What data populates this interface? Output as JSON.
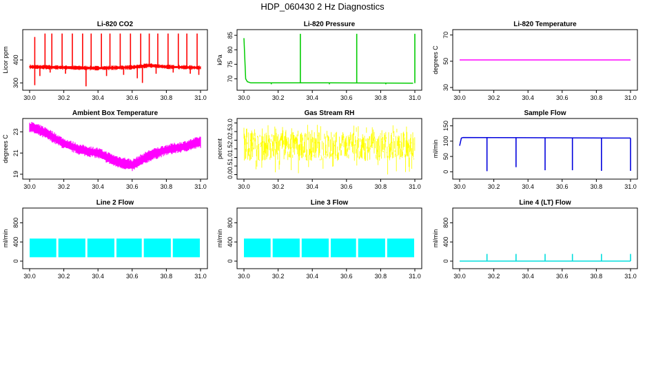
{
  "page": {
    "title": "HDP_060430  2 Hz Diagnostics"
  },
  "chart_data": [
    {
      "type": "line",
      "title": "Li-820 CO2",
      "xlabel": "",
      "ylabel": "Licor ppm",
      "color": "#ff0000",
      "xlim": [
        30.0,
        31.0
      ],
      "ylim": [
        280,
        520
      ],
      "xticks": [
        "30.0",
        "30.2",
        "30.4",
        "30.6",
        "30.8",
        "31.0"
      ],
      "yticks": [
        300,
        400
      ],
      "style": "band",
      "series": [
        {
          "x": [
            30.0,
            30.2,
            30.4,
            30.6,
            30.7,
            30.8,
            31.0
          ],
          "y": [
            370,
            367,
            364,
            368,
            376,
            370,
            366
          ]
        }
      ],
      "spikes_up": {
        "x": [
          30.03,
          30.09,
          30.13,
          30.19,
          30.25,
          30.31,
          30.36,
          30.42,
          30.47,
          30.53,
          30.59,
          30.65,
          30.7,
          30.75,
          30.81,
          30.87,
          30.92,
          30.98
        ],
        "y": [
          500,
          515,
          515,
          515,
          515,
          515,
          515,
          515,
          515,
          515,
          515,
          515,
          515,
          515,
          515,
          515,
          515,
          515
        ]
      },
      "spikes_down": {
        "x": [
          30.03,
          30.06,
          30.12,
          30.21,
          30.33,
          30.45,
          30.55,
          30.63,
          30.66,
          30.74,
          30.84,
          30.94,
          30.99
        ],
        "y": [
          290,
          330,
          345,
          340,
          285,
          330,
          335,
          320,
          300,
          340,
          345,
          340,
          335
        ]
      }
    },
    {
      "type": "line",
      "title": "Li-820 Pressure",
      "xlabel": "",
      "ylabel": "kPa",
      "color": "#00cc00",
      "xlim": [
        30.0,
        31.0
      ],
      "ylim": [
        67,
        86
      ],
      "xticks": [
        "30.0",
        "30.2",
        "30.4",
        "30.6",
        "30.8",
        "31.0"
      ],
      "yticks": [
        70,
        75,
        80,
        85
      ],
      "style": "line",
      "series": [
        {
          "x": [
            30.0,
            30.01,
            30.02,
            30.04,
            30.5,
            30.99
          ],
          "y": [
            84,
            70,
            69,
            68.6,
            68.6,
            68.5
          ]
        }
      ],
      "spikes_up": {
        "x": [
          30.33,
          30.66,
          31.0
        ],
        "y": [
          85.5,
          85.5,
          85.5
        ]
      },
      "spikes_down": {
        "x": [
          30.16,
          30.5,
          30.83
        ],
        "y": [
          68.1,
          68.1,
          68.1
        ]
      }
    },
    {
      "type": "line",
      "title": "Li-820 Temperature",
      "xlabel": "",
      "ylabel": "degrees C",
      "color": "#ff00ff",
      "xlim": [
        30.0,
        31.0
      ],
      "ylim": [
        30,
        72
      ],
      "xticks": [
        "30.0",
        "30.2",
        "30.4",
        "30.6",
        "30.8",
        "31.0"
      ],
      "yticks": [
        30,
        50,
        70
      ],
      "style": "line",
      "series": [
        {
          "x": [
            30.0,
            31.0
          ],
          "y": [
            51,
            51
          ]
        }
      ]
    },
    {
      "type": "area",
      "title": "Ambient Box Temperature",
      "xlabel": "",
      "ylabel": "degrees C",
      "color": "#ff00ff",
      "xlim": [
        30.0,
        31.0
      ],
      "ylim": [
        18.8,
        24.0
      ],
      "xticks": [
        "30.0",
        "30.2",
        "30.4",
        "30.6",
        "30.8",
        "31.0"
      ],
      "yticks": [
        19,
        21,
        23
      ],
      "style": "band",
      "series": [
        {
          "x": [
            30.0,
            30.1,
            30.2,
            30.3,
            30.4,
            30.5,
            30.6,
            30.7,
            30.8,
            30.9,
            31.0
          ],
          "upper": [
            23.9,
            23.3,
            22.3,
            21.7,
            21.4,
            20.7,
            20.3,
            21.2,
            21.7,
            22.0,
            22.5
          ],
          "lower": [
            23.1,
            22.4,
            21.5,
            20.9,
            20.6,
            19.8,
            19.4,
            20.3,
            20.9,
            21.2,
            21.6
          ]
        }
      ]
    },
    {
      "type": "line",
      "title": "Gas Stream RH",
      "xlabel": "",
      "ylabel": "percent",
      "color": "#ffff00",
      "xlim": [
        30.0,
        31.0
      ],
      "ylim": [
        -0.1,
        3.1
      ],
      "xticks": [
        "30.0",
        "30.2",
        "30.4",
        "30.6",
        "30.8",
        "31.0"
      ],
      "yticks": [
        "0.0",
        "0.5",
        "1.0",
        "1.5",
        "2.0",
        "2.5",
        "3.0"
      ],
      "style": "noise",
      "series": [
        {
          "x": [
            30.0,
            31.0
          ],
          "upper": [
            2.5,
            2.5
          ],
          "lower": [
            0.8,
            0.8
          ],
          "max": [
            2.9,
            2.9
          ],
          "min": [
            0.0,
            0.0
          ]
        }
      ]
    },
    {
      "type": "line",
      "title": "Sample Flow",
      "xlabel": "",
      "ylabel": "ml/min",
      "color": "#0000dd",
      "xlim": [
        30.0,
        31.0
      ],
      "ylim": [
        -15,
        165
      ],
      "xticks": [
        "30.0",
        "30.2",
        "30.4",
        "30.6",
        "30.8",
        "31.0"
      ],
      "yticks": [
        0,
        50,
        100,
        150
      ],
      "style": "line",
      "series": [
        {
          "x": [
            30.0,
            30.01,
            30.02,
            31.0
          ],
          "y": [
            85,
            110,
            112,
            110
          ]
        }
      ],
      "spikes_down": {
        "x": [
          30.16,
          30.33,
          30.5,
          30.66,
          30.83,
          31.0
        ],
        "y": [
          2,
          15,
          5,
          5,
          3,
          3
        ]
      }
    },
    {
      "type": "line",
      "title": "Line 2 Flow",
      "xlabel": "",
      "ylabel": "ml/min",
      "color": "#00ffff",
      "xlim": [
        30.0,
        31.0
      ],
      "ylim": [
        -100,
        1050
      ],
      "xticks": [
        "30.0",
        "30.2",
        "30.4",
        "30.6",
        "30.8",
        "31.0"
      ],
      "yticks": [
        0,
        400,
        800
      ],
      "style": "blocks",
      "series": [
        {
          "x": [
            30.0,
            31.0
          ],
          "upper": [
            470,
            470
          ],
          "lower": [
            80,
            80
          ]
        }
      ],
      "gaps": {
        "x": [
          30.16,
          30.33,
          30.5,
          30.66,
          30.83
        ]
      }
    },
    {
      "type": "line",
      "title": "Line 3 Flow",
      "xlabel": "",
      "ylabel": "ml/min",
      "color": "#00ffff",
      "xlim": [
        30.0,
        31.0
      ],
      "ylim": [
        -100,
        1050
      ],
      "xticks": [
        "30.0",
        "30.2",
        "30.4",
        "30.6",
        "30.8",
        "31.0"
      ],
      "yticks": [
        0,
        400,
        800
      ],
      "style": "blocks",
      "series": [
        {
          "x": [
            30.0,
            31.0
          ],
          "upper": [
            470,
            470
          ],
          "lower": [
            80,
            80
          ]
        }
      ],
      "gaps": {
        "x": [
          30.16,
          30.33,
          30.5,
          30.66,
          30.83
        ]
      }
    },
    {
      "type": "line",
      "title": "Line 4 (LT) Flow",
      "xlabel": "",
      "ylabel": "ml/min",
      "color": "#00dddd",
      "xlim": [
        30.0,
        31.0
      ],
      "ylim": [
        -100,
        1050
      ],
      "xticks": [
        "30.0",
        "30.2",
        "30.4",
        "30.6",
        "30.8",
        "31.0"
      ],
      "yticks": [
        0,
        400,
        800
      ],
      "style": "line",
      "series": [
        {
          "x": [
            30.0,
            31.0
          ],
          "y": [
            0,
            0
          ]
        }
      ],
      "spikes_up": {
        "x": [
          30.16,
          30.33,
          30.5,
          30.66,
          30.83,
          31.0
        ],
        "y": [
          150,
          150,
          150,
          150,
          150,
          150
        ]
      }
    }
  ]
}
